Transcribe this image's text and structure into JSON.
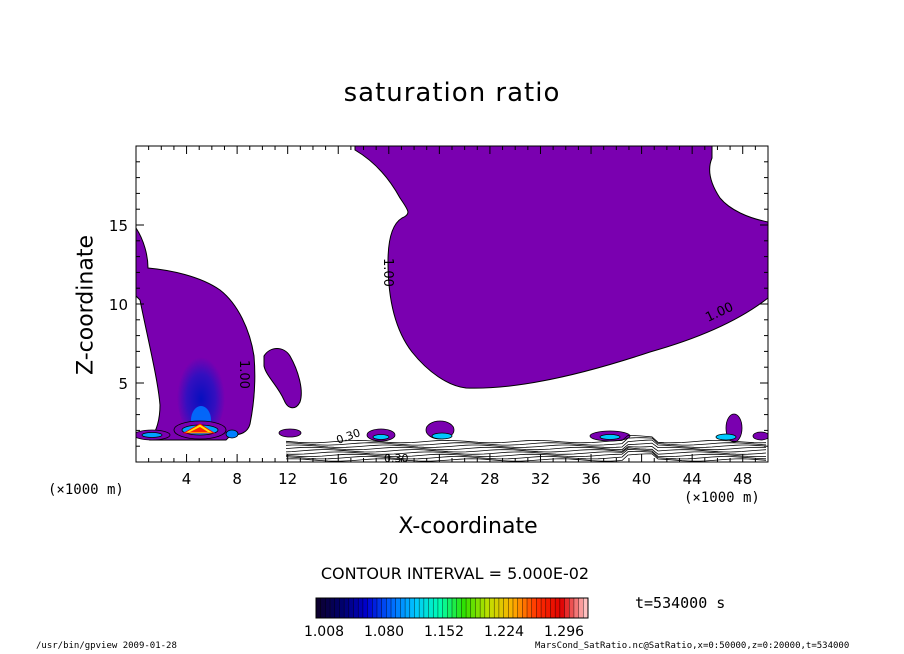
{
  "chart_data": {
    "type": "contour",
    "title": "saturation ratio",
    "xlabel": "X-coordinate",
    "ylabel": "Z-coordinate",
    "x_unit": "(×1000 m)",
    "xlim": [
      0,
      50
    ],
    "ylim": [
      0,
      20
    ],
    "x_ticks": [
      4,
      8,
      12,
      16,
      20,
      24,
      28,
      32,
      36,
      40,
      44,
      48
    ],
    "y_ticks": [
      5,
      10,
      15
    ],
    "contour_labels": [
      "1.00",
      "1.00",
      "1.00",
      "0.30",
      "0.30"
    ],
    "contour_interval": "CONTOUR INTERVAL = 5.000E-02",
    "colorbar": {
      "tick_labels": [
        "1.008",
        "1.080",
        "1.152",
        "1.224",
        "1.296"
      ],
      "range": [
        1.008,
        1.296
      ],
      "colors": [
        "#0d0030",
        "#00006e",
        "#0000d0",
        "#0066ff",
        "#00c8ff",
        "#00ffb0",
        "#30e000",
        "#c0e000",
        "#ffb000",
        "#ff3000",
        "#e00000",
        "#ffc0c0"
      ]
    },
    "fill_color": "#7a00b0",
    "time": "t=534000 s"
  },
  "footer": {
    "left": "/usr/bin/gpview  2009-01-28",
    "right": "MarsCond_SatRatio.nc@SatRatio,x=0:50000,z=0:20000,t=534000"
  }
}
